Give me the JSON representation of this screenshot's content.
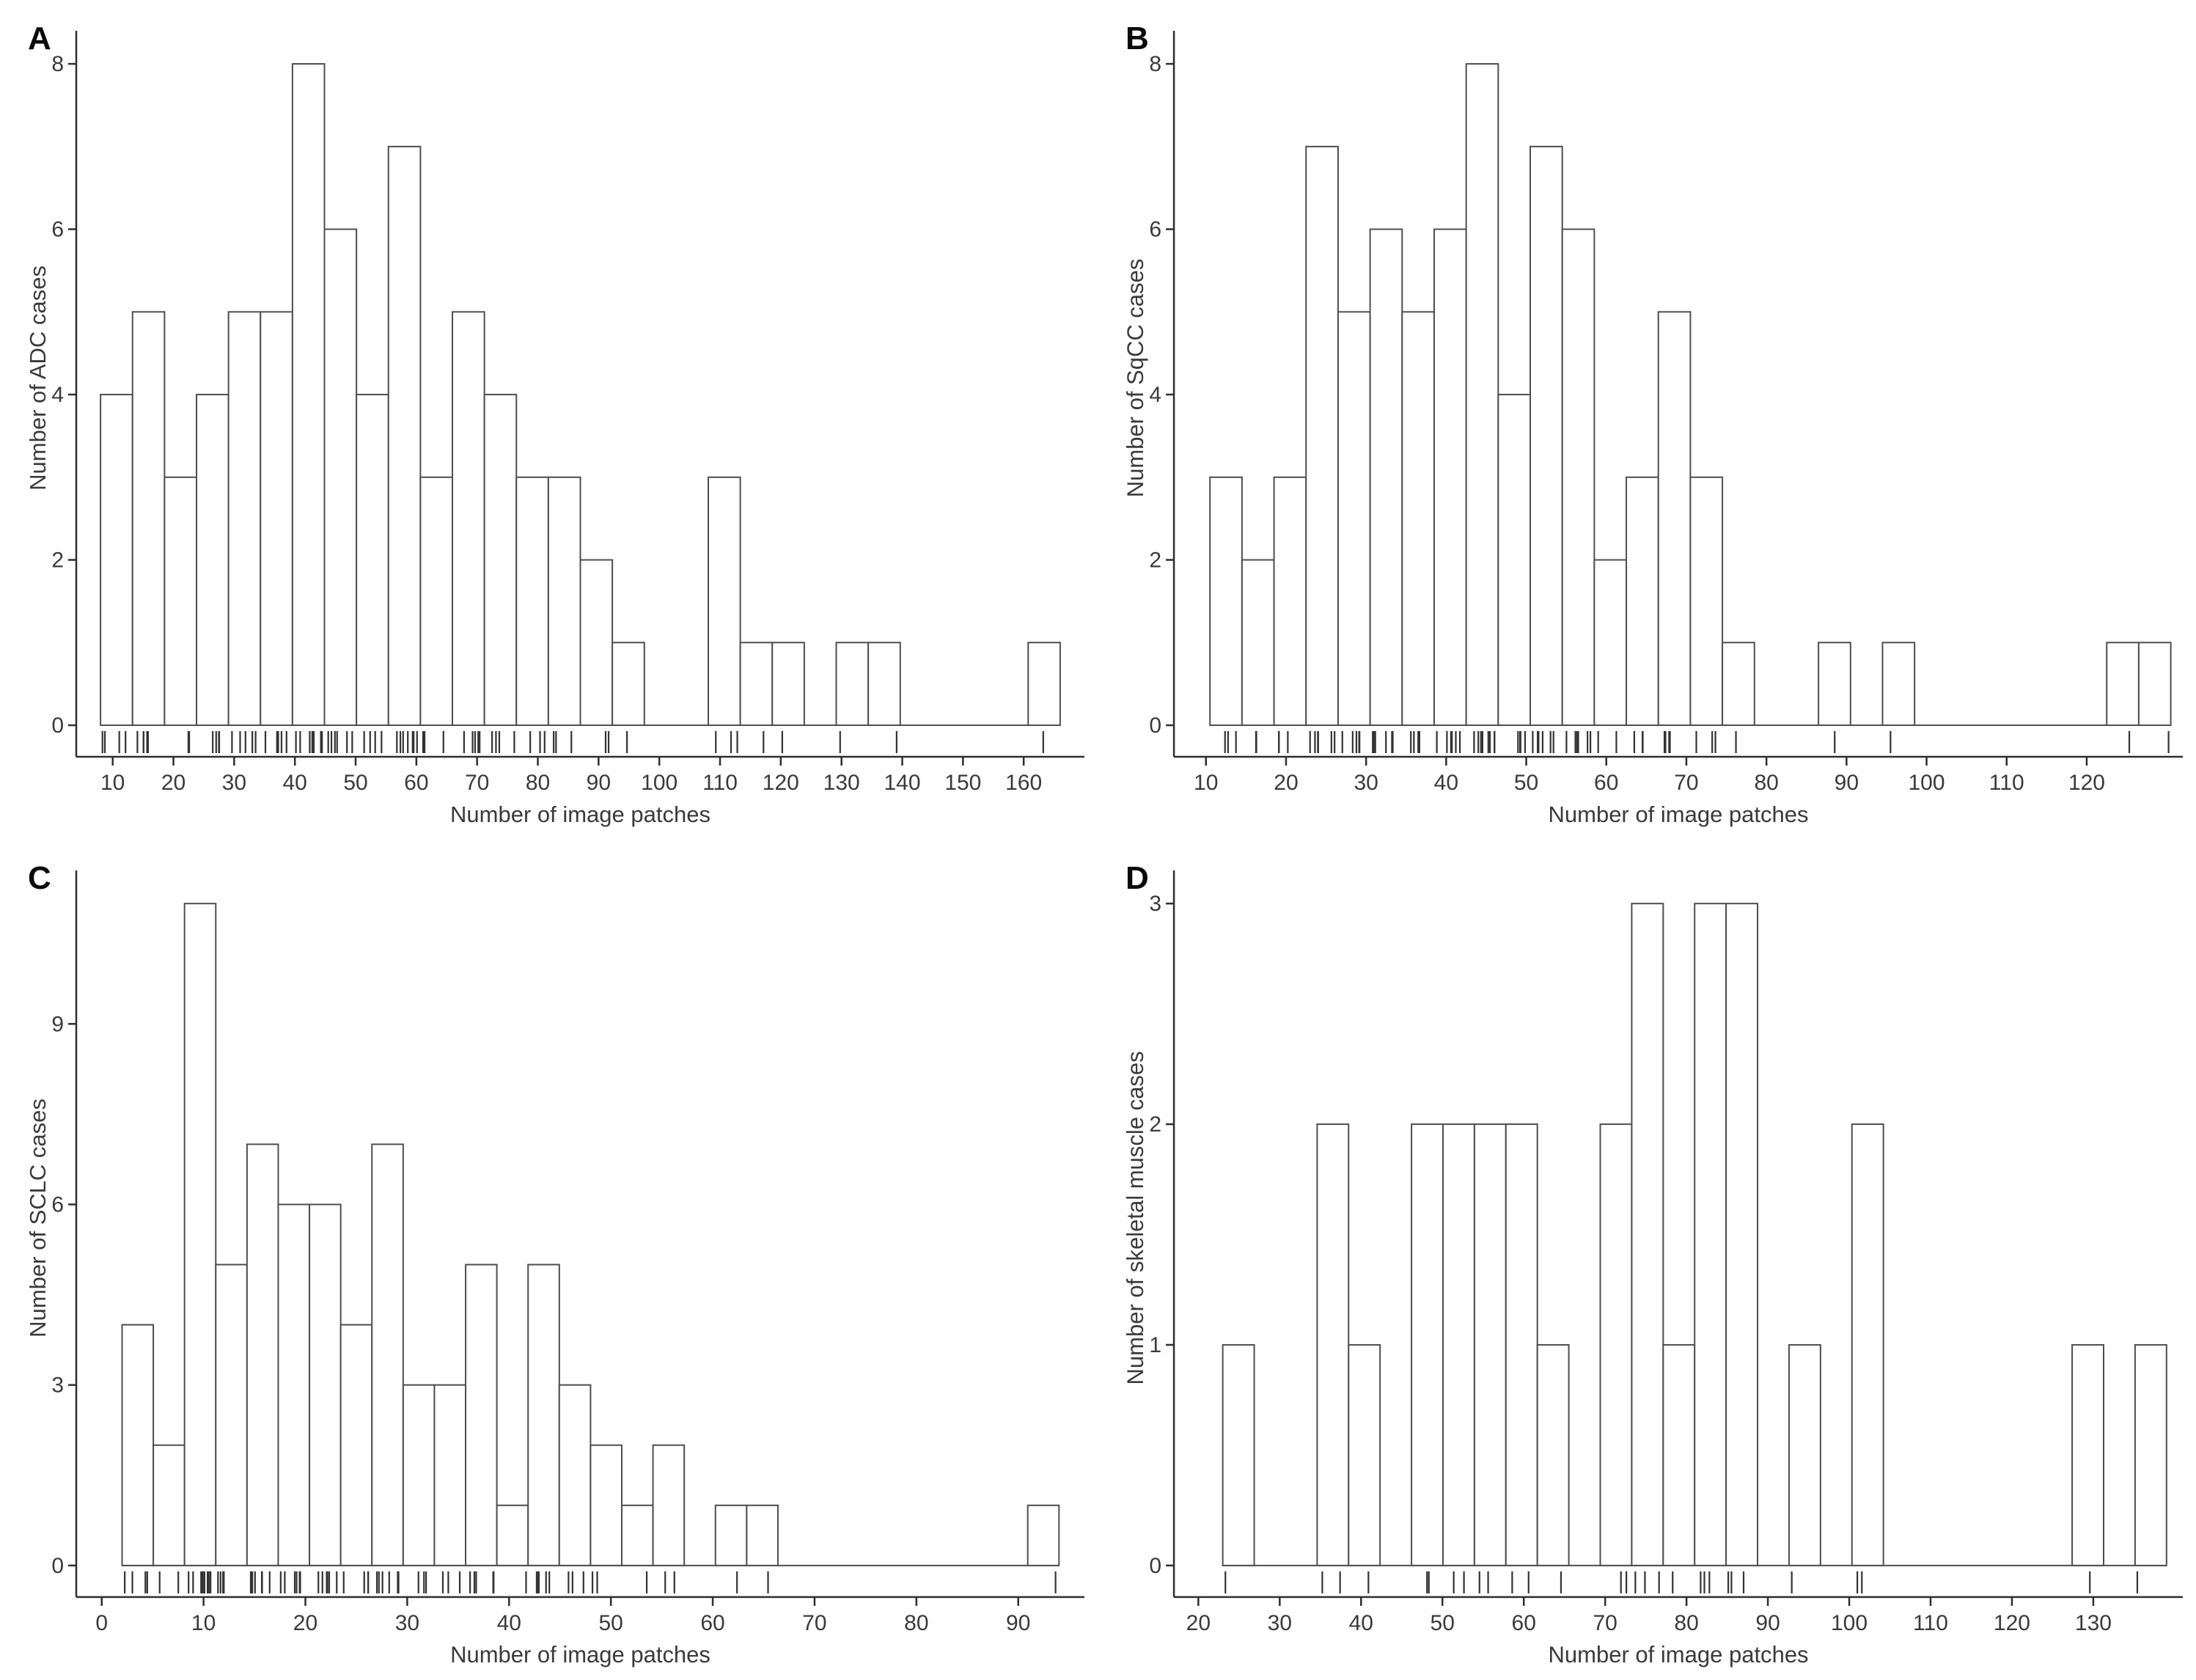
{
  "style": {
    "background": "#ffffff",
    "bar_fill": "#ffffff",
    "bar_stroke": "#4e4e4e",
    "axis_color": "#2e2e2e",
    "text_color": "#3a3a3a",
    "rug_color": "#333333",
    "letter_color": "#0a0a0a"
  },
  "chart_data": [
    {
      "letter": "A",
      "type": "bar",
      "subtype": "histogram",
      "title": "",
      "xlabel": "Number of image patches",
      "ylabel": "Number of ADC cases",
      "x_ticks": [
        10,
        20,
        30,
        40,
        50,
        60,
        70,
        80,
        90,
        100,
        110,
        120,
        130,
        140,
        150,
        160
      ],
      "y_ticks": [
        0,
        2,
        4,
        6,
        8
      ],
      "x_range": [
        4,
        170
      ],
      "y_range": [
        0,
        8.4
      ],
      "grid": false,
      "legend": false,
      "rug": true,
      "bins": {
        "start": 8,
        "binwidth": 5.2667,
        "counts": [
          4,
          5,
          3,
          4,
          5,
          5,
          8,
          6,
          4,
          7,
          3,
          5,
          4,
          3,
          3,
          2,
          1,
          0,
          0,
          3,
          1,
          1,
          0,
          1,
          1,
          0,
          0,
          0,
          0,
          1
        ]
      }
    },
    {
      "letter": "B",
      "type": "bar",
      "subtype": "histogram",
      "title": "",
      "xlabel": "Number of image patches",
      "ylabel": "Number of SqCC cases",
      "x_ticks": [
        10,
        20,
        30,
        40,
        50,
        60,
        70,
        80,
        90,
        100,
        110,
        120
      ],
      "y_ticks": [
        0,
        2,
        4,
        6,
        8
      ],
      "x_range": [
        6,
        132
      ],
      "y_range": [
        0,
        8.4
      ],
      "grid": false,
      "legend": false,
      "rug": true,
      "bins": {
        "start": 10.5,
        "binwidth": 4,
        "counts": [
          3,
          2,
          3,
          7,
          5,
          6,
          5,
          6,
          8,
          4,
          7,
          6,
          2,
          3,
          5,
          3,
          1,
          0,
          0,
          1,
          0,
          1,
          0,
          0,
          0,
          0,
          0,
          0,
          1,
          1
        ]
      }
    },
    {
      "letter": "C",
      "type": "bar",
      "subtype": "histogram",
      "title": "",
      "xlabel": "Number of image patches",
      "ylabel": "Number of SCLC cases",
      "x_ticks": [
        0,
        10,
        20,
        30,
        40,
        50,
        60,
        70,
        80,
        90
      ],
      "y_ticks": [
        0,
        3,
        6,
        9
      ],
      "x_range": [
        -2.5,
        96.5
      ],
      "y_range": [
        0,
        11.55
      ],
      "grid": false,
      "legend": false,
      "rug": true,
      "bins": {
        "start": 2,
        "binwidth": 3.0667,
        "counts": [
          4,
          2,
          11,
          5,
          7,
          6,
          6,
          4,
          7,
          3,
          3,
          5,
          1,
          5,
          3,
          2,
          1,
          2,
          0,
          1,
          1,
          0,
          0,
          0,
          0,
          0,
          0,
          0,
          0,
          1
        ]
      }
    },
    {
      "letter": "D",
      "type": "bar",
      "subtype": "histogram",
      "title": "",
      "xlabel": "Number of image patches",
      "ylabel": "Number of skeletal muscle cases",
      "x_ticks": [
        20,
        30,
        40,
        50,
        60,
        70,
        80,
        90,
        100,
        110,
        120,
        130
      ],
      "y_ticks": [
        0,
        1,
        2,
        3
      ],
      "x_range": [
        17,
        141
      ],
      "y_range": [
        0,
        3.15
      ],
      "grid": false,
      "legend": false,
      "rug": true,
      "bins": {
        "start": 23,
        "binwidth": 3.8667,
        "counts": [
          1,
          0,
          0,
          2,
          1,
          0,
          2,
          2,
          2,
          2,
          1,
          0,
          2,
          3,
          1,
          3,
          3,
          0,
          1,
          0,
          2,
          0,
          0,
          0,
          0,
          0,
          0,
          1,
          0,
          1
        ]
      }
    }
  ]
}
